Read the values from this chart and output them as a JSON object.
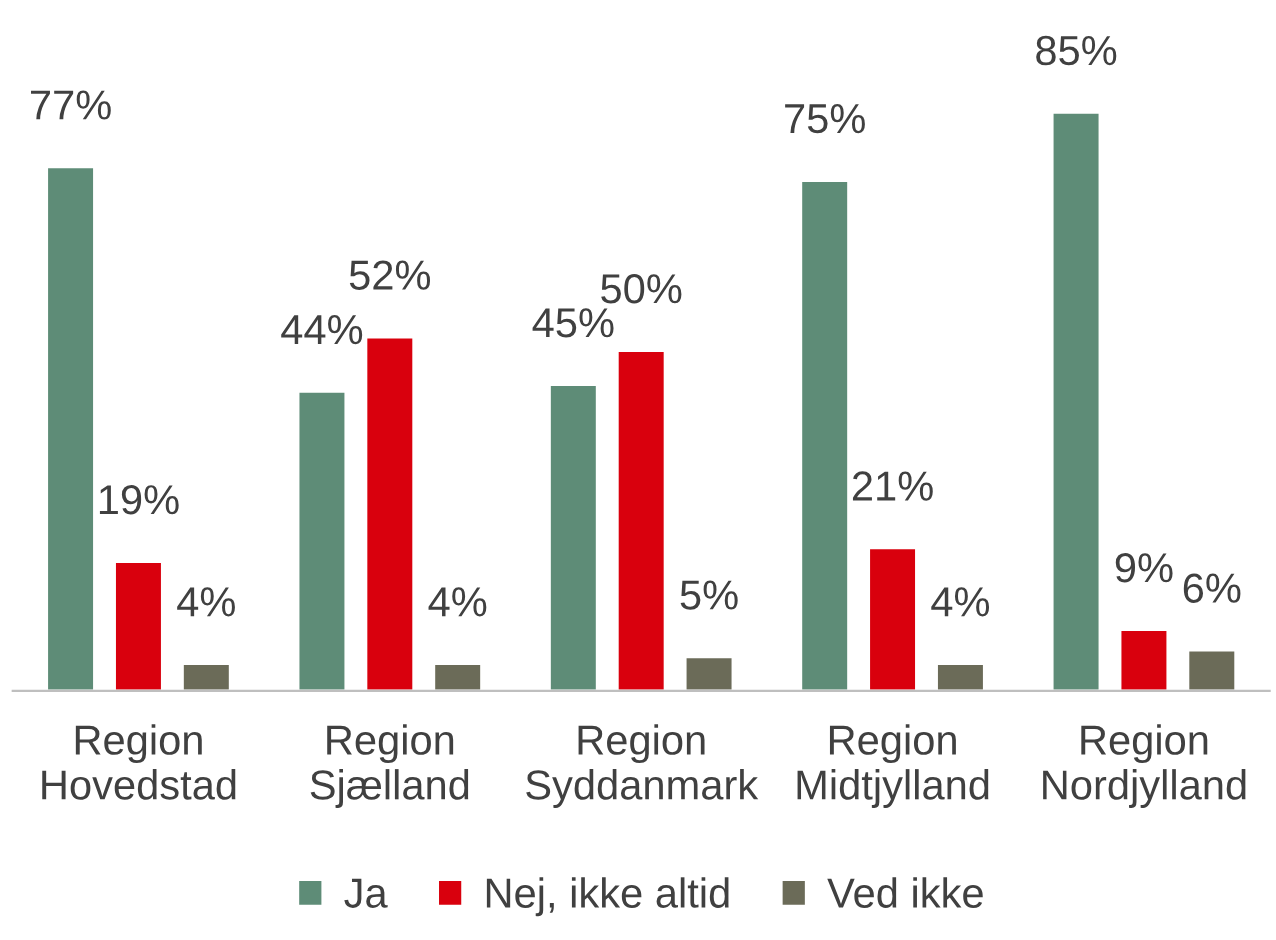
{
  "chart_data": {
    "type": "bar",
    "categories": [
      "Region\nHovedstad",
      "Region\nSjælland",
      "Region\nSyddanmark",
      "Region\nMidtjylland",
      "Region\nNordjylland"
    ],
    "series": [
      {
        "name": "Ja",
        "color": "#5e8c77",
        "values": [
          77,
          44,
          45,
          75,
          85
        ],
        "value_labels": [
          "77%",
          "44%",
          "45%",
          "75%",
          "85%"
        ]
      },
      {
        "name": "Nej, ikke altid",
        "color": "#d9000d",
        "values": [
          19,
          52,
          50,
          21,
          9
        ],
        "value_labels": [
          "19%",
          "52%",
          "50%",
          "21%",
          "9%"
        ]
      },
      {
        "name": "Ved ikke",
        "color": "#6b6b58",
        "values": [
          4,
          4,
          5,
          4,
          6
        ],
        "value_labels": [
          "4%",
          "4%",
          "5%",
          "4%",
          "6%"
        ]
      }
    ],
    "legend": "bottom",
    "grid": false
  }
}
